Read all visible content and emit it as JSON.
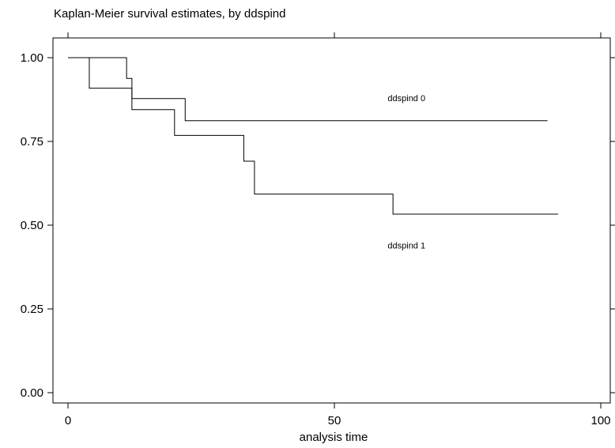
{
  "chart_data": {
    "type": "line",
    "title": "Kaplan-Meier survival estimates, by ddspind",
    "xlabel": "analysis time",
    "ylabel": "",
    "xlim": [
      -2,
      100
    ],
    "ylim": [
      -0.0,
      1.0
    ],
    "x_ticks": [
      0,
      50,
      100
    ],
    "x_tick_labels": [
      "0",
      "50",
      "100"
    ],
    "y_ticks": [
      0.0,
      0.25,
      0.5,
      0.75,
      1.0
    ],
    "y_tick_labels": [
      "0.00",
      "0.25",
      "0.50",
      "0.75",
      "1.00"
    ],
    "grid": false,
    "legend": "none",
    "series": [
      {
        "name": "ddspind 0",
        "label_at": {
          "x": 60,
          "y": 0.87
        },
        "x": [
          0,
          11,
          12,
          22,
          90
        ],
        "y": [
          1.0,
          0.938,
          0.878,
          0.812,
          0.812
        ]
      },
      {
        "name": "ddspind 1",
        "label_at": {
          "x": 60,
          "y": 0.43
        },
        "x": [
          0,
          4,
          12,
          20,
          33,
          35,
          61,
          92
        ],
        "y": [
          1.0,
          0.909,
          0.845,
          0.768,
          0.691,
          0.593,
          0.533,
          0.533
        ]
      }
    ]
  }
}
